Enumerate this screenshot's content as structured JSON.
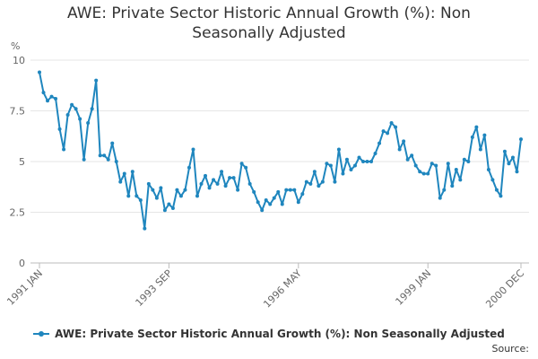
{
  "title_line1": "AWE: Private Sector Historic Annual Growth (%): Non",
  "title_line2": "Seasonally Adjusted",
  "source_label": "Source:",
  "chart_data": {
    "type": "line",
    "ylabel": "%",
    "ylim": [
      0,
      10
    ],
    "yticks": [
      "0",
      "2.5",
      "5",
      "7.5",
      "10"
    ],
    "ytick_values": [
      0,
      2.5,
      5,
      7.5,
      10
    ],
    "xtick_labels": [
      "1991 JAN",
      "1993 SEP",
      "1996 MAY",
      "1999 JAN",
      "2000 DEC"
    ],
    "xtick_index": [
      0,
      32,
      64,
      96,
      119
    ],
    "grid": true,
    "color": "#1f86be",
    "series": [
      {
        "name": "AWE: Private Sector Historic Annual Growth (%): Non Seasonally Adjusted",
        "values": [
          9.4,
          8.4,
          8.0,
          8.2,
          8.1,
          6.6,
          5.6,
          7.3,
          7.8,
          7.6,
          7.1,
          5.1,
          6.9,
          7.6,
          9.0,
          5.3,
          5.3,
          5.1,
          5.9,
          5.0,
          4.0,
          4.4,
          3.3,
          4.5,
          3.3,
          3.1,
          1.7,
          3.9,
          3.6,
          3.2,
          3.7,
          2.6,
          2.9,
          2.7,
          3.6,
          3.3,
          3.6,
          4.7,
          5.6,
          3.3,
          3.9,
          4.3,
          3.7,
          4.1,
          3.9,
          4.5,
          3.8,
          4.2,
          4.2,
          3.6,
          4.9,
          4.7,
          3.9,
          3.5,
          3.0,
          2.6,
          3.1,
          2.9,
          3.2,
          3.5,
          2.9,
          3.6,
          3.6,
          3.6,
          3.0,
          3.4,
          4.0,
          3.9,
          4.5,
          3.8,
          4.0,
          4.9,
          4.8,
          4.0,
          5.6,
          4.4,
          5.1,
          4.6,
          4.8,
          5.2,
          5.0,
          5.0,
          5.0,
          5.4,
          5.9,
          6.5,
          6.4,
          6.9,
          6.7,
          5.6,
          6.0,
          5.1,
          5.3,
          4.8,
          4.5,
          4.4,
          4.4,
          4.9,
          4.8,
          3.2,
          3.6,
          4.9,
          3.8,
          4.6,
          4.1,
          5.1,
          5.0,
          6.2,
          6.7,
          5.6,
          6.3,
          4.6,
          4.1,
          3.6,
          3.3,
          5.5,
          4.9,
          5.2,
          4.5,
          6.1
        ]
      }
    ]
  }
}
